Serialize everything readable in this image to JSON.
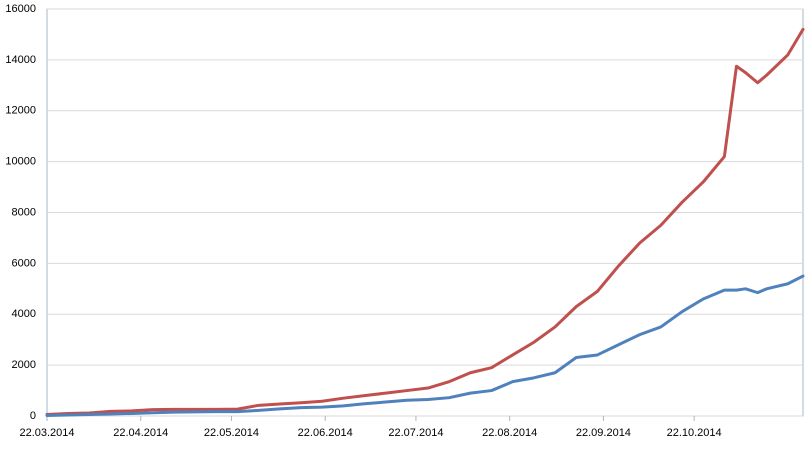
{
  "chart_data": {
    "type": "line",
    "x": [
      "22.03.2014",
      "29.03.2014",
      "05.04.2014",
      "12.04.2014",
      "19.04.2014",
      "26.04.2014",
      "03.05.2014",
      "10.05.2014",
      "17.05.2014",
      "24.05.2014",
      "31.05.2014",
      "07.06.2014",
      "14.06.2014",
      "21.06.2014",
      "28.06.2014",
      "05.07.2014",
      "12.07.2014",
      "19.07.2014",
      "26.07.2014",
      "02.08.2014",
      "09.08.2014",
      "16.08.2014",
      "23.08.2014",
      "30.08.2014",
      "06.09.2014",
      "13.09.2014",
      "20.09.2014",
      "27.09.2014",
      "04.10.2014",
      "11.10.2014",
      "18.10.2014",
      "25.10.2014",
      "01.11.2014",
      "05.11.2014",
      "08.11.2014",
      "12.11.2014",
      "15.11.2014",
      "22.11.2014",
      "27.11.2014"
    ],
    "series": [
      {
        "color": "#c0504d",
        "values": [
          60,
          100,
          120,
          180,
          200,
          250,
          260,
          260,
          260,
          270,
          420,
          470,
          520,
          580,
          700,
          800,
          900,
          1000,
          1100,
          1350,
          1700,
          1900,
          2400,
          2900,
          3500,
          4300,
          4900,
          5900,
          6800,
          7500,
          8400,
          9200,
          10200,
          13750,
          13500,
          13100,
          13400,
          14200,
          15200
        ]
      },
      {
        "color": "#4f81bd",
        "values": [
          20,
          40,
          60,
          80,
          100,
          130,
          150,
          160,
          170,
          170,
          220,
          280,
          330,
          350,
          400,
          480,
          550,
          620,
          650,
          720,
          900,
          1000,
          1350,
          1500,
          1700,
          2300,
          2400,
          2800,
          3200,
          3500,
          4100,
          4600,
          4950,
          4950,
          5000,
          4850,
          5000,
          5200,
          5500
        ]
      }
    ],
    "xlim": [
      "22.03.2014",
      "27.11.2014"
    ],
    "xticks": [
      "22.03.2014",
      "22.04.2014",
      "22.05.2014",
      "22.06.2014",
      "22.07.2014",
      "22.08.2014",
      "22.09.2014",
      "22.10.2014"
    ],
    "ylim": [
      0,
      16000
    ],
    "yticks": [
      0,
      2000,
      4000,
      6000,
      8000,
      10000,
      12000,
      14000,
      16000
    ],
    "grid": true
  }
}
